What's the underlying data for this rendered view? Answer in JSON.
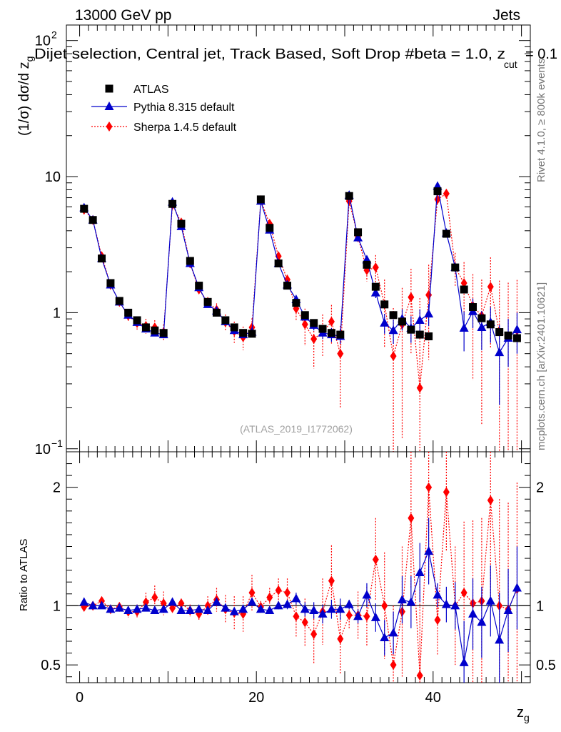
{
  "chart_data": {
    "type": "scatter",
    "header": {
      "energy": "13000 GeV pp",
      "category": "Jets",
      "selection": "Dijet selection, Central jet, Track Based, Soft Drop #beta = 1.0, z",
      "selection_sub": "cut",
      "selection_tail": " = 0.1"
    },
    "side_labels": {
      "rivet": "Rivet 4.1.0, ≥ 800k events",
      "site": "mcplots.cern.ch [arXiv:2401.10621]"
    },
    "watermark": "(ATLAS_2019_I1772062)",
    "xlabel": "z",
    "xlabel_sub": "g",
    "ylabel": "(1/σ) dσ/d z",
    "ylabel_sub": "g",
    "ratio_ylabel": "Ratio to ATLAS",
    "xlim": [
      -1.5,
      51
    ],
    "ylim_log": [
      0.095,
      130
    ],
    "ratio_ylim": [
      0.35,
      2.3
    ],
    "x_ticks": [
      "0",
      "20",
      "40"
    ],
    "y_ticks": [
      {
        "value": 100,
        "base": "10",
        "exp": "2"
      },
      {
        "value": 10,
        "base": "10",
        "exp": ""
      },
      {
        "value": 1,
        "base": "1",
        "exp": ""
      },
      {
        "value": 0.1,
        "base": "10",
        "exp": "−1"
      }
    ],
    "ratio_ticks": [
      "0.5",
      "1",
      "2"
    ],
    "x": [
      0.5,
      1.5,
      2.5,
      3.5,
      4.5,
      5.5,
      6.5,
      7.5,
      8.5,
      9.5,
      10.5,
      11.5,
      12.5,
      13.5,
      14.5,
      15.5,
      16.5,
      17.5,
      18.5,
      19.5,
      20.5,
      21.5,
      22.5,
      23.5,
      24.5,
      25.5,
      26.5,
      27.5,
      28.5,
      29.5,
      30.5,
      31.5,
      32.5,
      33.5,
      34.5,
      35.5,
      36.5,
      37.5,
      38.5,
      39.5,
      40.5,
      41.5,
      42.5,
      43.5,
      44.5,
      45.5,
      46.5,
      47.5,
      48.5,
      49.5
    ],
    "series": [
      {
        "name": "ATLAS",
        "color": "#000000",
        "marker": "square",
        "values": [
          5.8,
          4.8,
          2.5,
          1.65,
          1.22,
          1.0,
          0.88,
          0.78,
          0.74,
          0.71,
          6.3,
          4.5,
          2.4,
          1.58,
          1.2,
          1.0,
          0.88,
          0.78,
          0.71,
          0.7,
          6.8,
          4.2,
          2.3,
          1.58,
          1.18,
          0.96,
          0.84,
          0.76,
          0.71,
          0.69,
          7.2,
          3.9,
          2.25,
          1.55,
          1.15,
          0.96,
          0.86,
          0.75,
          0.69,
          0.67,
          7.8,
          3.8,
          2.15,
          1.48,
          1.1,
          0.91,
          0.82,
          0.72,
          0.68,
          0.65
        ],
        "errors": [
          0,
          0,
          0,
          0,
          0,
          0,
          0,
          0,
          0,
          0,
          0,
          0,
          0,
          0,
          0,
          0,
          0,
          0,
          0,
          0,
          0,
          0,
          0,
          0,
          0,
          0,
          0,
          0,
          0,
          0,
          0,
          0,
          0,
          0,
          0,
          0,
          0,
          0,
          0,
          0,
          0,
          0,
          0,
          0,
          0,
          0,
          0,
          0,
          0,
          0
        ]
      },
      {
        "name": "Pythia 8.315 default",
        "color": "#0000cc",
        "marker": "triangle",
        "values": [
          5.9,
          4.8,
          2.5,
          1.6,
          1.2,
          0.96,
          0.85,
          0.76,
          0.71,
          0.69,
          6.5,
          4.3,
          2.3,
          1.53,
          1.15,
          1.03,
          0.86,
          0.74,
          0.69,
          0.72,
          6.6,
          4.05,
          2.3,
          1.6,
          1.25,
          0.93,
          0.81,
          0.71,
          0.69,
          0.67,
          7.3,
          3.55,
          2.45,
          1.4,
          0.84,
          0.74,
          0.9,
          0.77,
          0.88,
          0.98,
          8.5,
          3.85,
          2.15,
          0.77,
          1.02,
          0.78,
          0.85,
          0.51,
          0.65,
          0.75
        ],
        "errors": [
          0.03,
          0.03,
          0.03,
          0.03,
          0.03,
          0.03,
          0.03,
          0.03,
          0.03,
          0.03,
          0.03,
          0.03,
          0.03,
          0.03,
          0.03,
          0.03,
          0.04,
          0.04,
          0.04,
          0.04,
          0.04,
          0.04,
          0.05,
          0.05,
          0.06,
          0.06,
          0.07,
          0.07,
          0.08,
          0.08,
          0.06,
          0.08,
          0.1,
          0.12,
          0.14,
          0.15,
          0.16,
          0.17,
          0.18,
          0.18,
          0.1,
          0.12,
          0.15,
          0.25,
          0.25,
          0.25,
          0.25,
          0.3,
          0.25,
          0.25
        ]
      },
      {
        "name": "Sherpa 1.4.5 default",
        "color": "#ff0000",
        "marker": "diamond",
        "values": [
          5.7,
          4.8,
          2.6,
          1.6,
          1.2,
          0.95,
          0.84,
          0.8,
          0.78,
          0.72,
          6.2,
          4.6,
          2.3,
          1.48,
          1.2,
          1.05,
          0.85,
          0.73,
          0.66,
          0.78,
          6.7,
          4.5,
          2.6,
          1.75,
          1.07,
          0.82,
          0.64,
          0.72,
          0.86,
          0.5,
          6.6,
          3.6,
          2.05,
          2.15,
          1.15,
          0.48,
          0.82,
          1.3,
          0.28,
          1.35,
          6.8,
          7.5,
          2.15,
          1.65,
          1.12,
          0.95,
          1.55,
          0.72,
          0.66,
          0.74
        ],
        "errors": [
          0.04,
          0.04,
          0.05,
          0.06,
          0.07,
          0.08,
          0.09,
          0.1,
          0.1,
          0.1,
          0.05,
          0.06,
          0.07,
          0.08,
          0.1,
          0.12,
          0.12,
          0.13,
          0.13,
          0.13,
          0.08,
          0.1,
          0.12,
          0.15,
          0.2,
          0.25,
          0.25,
          0.25,
          0.28,
          0.3,
          0.2,
          0.3,
          0.35,
          0.5,
          0.6,
          0.6,
          0.7,
          0.8,
          1.0,
          0.9,
          0.4,
          0.6,
          0.6,
          0.7,
          0.8,
          0.8,
          1.0,
          1.0,
          1.0,
          1.0
        ]
      }
    ],
    "ratio_series": [
      {
        "name": "Pythia 8.315 default",
        "values": [
          1.03,
          1.0,
          1.0,
          0.97,
          0.98,
          0.96,
          0.97,
          0.98,
          0.96,
          0.97,
          1.03,
          0.96,
          0.96,
          0.97,
          0.96,
          1.03,
          0.98,
          0.95,
          0.97,
          1.03,
          0.97,
          0.96,
          1.0,
          1.01,
          1.06,
          0.97,
          0.96,
          0.93,
          0.97,
          0.97,
          1.01,
          0.91,
          1.09,
          0.9,
          0.73,
          0.77,
          1.05,
          1.03,
          1.28,
          1.46,
          1.09,
          1.01,
          1.0,
          0.52,
          0.93,
          0.86,
          1.04,
          0.71,
          0.96,
          1.15
        ],
        "errors": [
          0.01,
          0.01,
          0.01,
          0.01,
          0.02,
          0.02,
          0.02,
          0.02,
          0.02,
          0.02,
          0.01,
          0.02,
          0.02,
          0.02,
          0.02,
          0.03,
          0.03,
          0.03,
          0.03,
          0.03,
          0.02,
          0.03,
          0.03,
          0.04,
          0.05,
          0.06,
          0.07,
          0.08,
          0.08,
          0.09,
          0.04,
          0.06,
          0.1,
          0.12,
          0.15,
          0.18,
          0.2,
          0.22,
          0.25,
          0.28,
          0.1,
          0.15,
          0.2,
          0.35,
          0.3,
          0.3,
          0.3,
          0.4,
          0.35,
          0.35
        ]
      },
      {
        "name": "Sherpa 1.4.5 default",
        "values": [
          0.99,
          1.0,
          1.04,
          0.97,
          0.99,
          0.95,
          0.95,
          1.03,
          1.07,
          1.02,
          0.98,
          1.02,
          0.96,
          0.93,
          1.0,
          1.05,
          0.97,
          0.94,
          0.93,
          1.11,
          0.99,
          1.07,
          1.13,
          1.11,
          0.91,
          0.86,
          0.76,
          0.95,
          1.21,
          0.72,
          0.92,
          0.92,
          0.91,
          1.39,
          1.0,
          0.5,
          0.95,
          1.74,
          0.41,
          2.0,
          0.88,
          1.96,
          1.0,
          1.11,
          1.02,
          1.04,
          1.89,
          1.0,
          0.97,
          1.14
        ],
        "errors": [
          0.01,
          0.01,
          0.02,
          0.03,
          0.04,
          0.05,
          0.06,
          0.08,
          0.1,
          0.1,
          0.02,
          0.04,
          0.05,
          0.06,
          0.08,
          0.1,
          0.12,
          0.14,
          0.15,
          0.15,
          0.05,
          0.08,
          0.1,
          0.12,
          0.18,
          0.2,
          0.25,
          0.28,
          0.3,
          0.3,
          0.12,
          0.2,
          0.25,
          0.35,
          0.45,
          0.5,
          0.55,
          0.6,
          0.8,
          0.75,
          0.3,
          0.5,
          0.5,
          0.6,
          0.7,
          0.7,
          0.9,
          0.9,
          0.9,
          0.9
        ]
      }
    ],
    "legend_position": "top-left"
  }
}
